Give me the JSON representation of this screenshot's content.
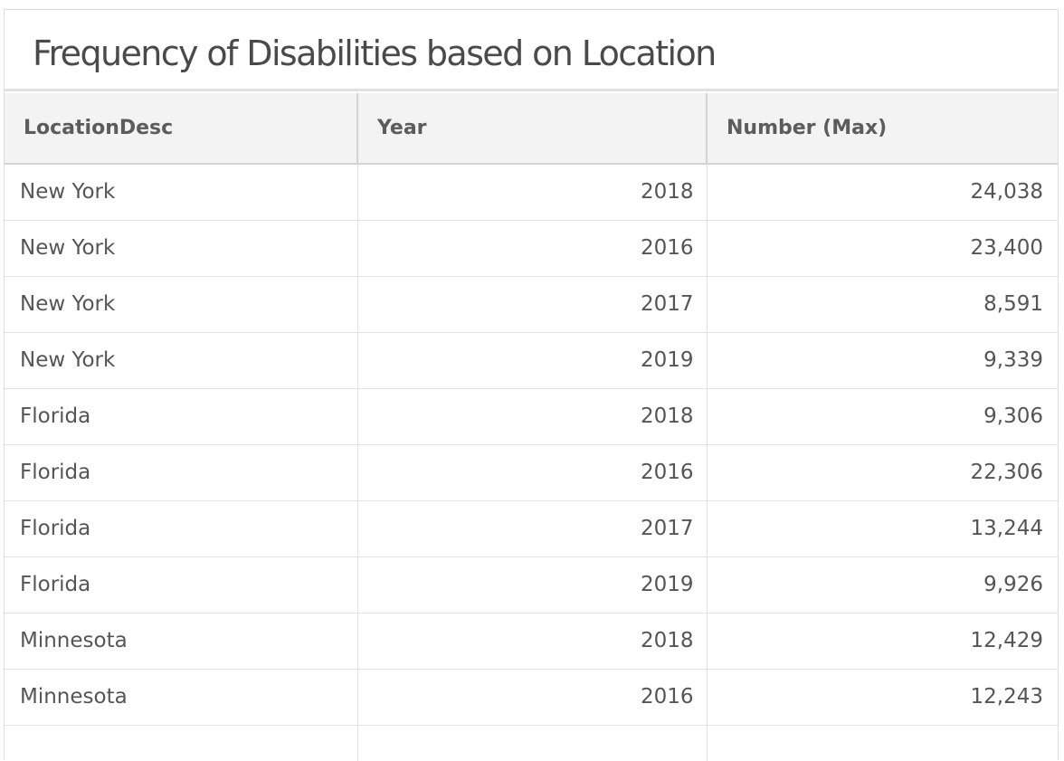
{
  "chart_data": {
    "type": "table",
    "title": "Frequency of Disabilities based on Location",
    "columns": [
      "LocationDesc",
      "Year",
      "Number (Max)"
    ],
    "rows": [
      {
        "location": "New York",
        "year": "2018",
        "number": "24,038"
      },
      {
        "location": "New York",
        "year": "2016",
        "number": "23,400"
      },
      {
        "location": "New York",
        "year": "2017",
        "number": "8,591"
      },
      {
        "location": "New York",
        "year": "2019",
        "number": "9,339"
      },
      {
        "location": "Florida",
        "year": "2018",
        "number": "9,306"
      },
      {
        "location": "Florida",
        "year": "2016",
        "number": "22,306"
      },
      {
        "location": "Florida",
        "year": "2017",
        "number": "13,244"
      },
      {
        "location": "Florida",
        "year": "2019",
        "number": "9,926"
      },
      {
        "location": "Minnesota",
        "year": "2018",
        "number": "12,429"
      },
      {
        "location": "Minnesota",
        "year": "2016",
        "number": "12,243"
      }
    ]
  }
}
